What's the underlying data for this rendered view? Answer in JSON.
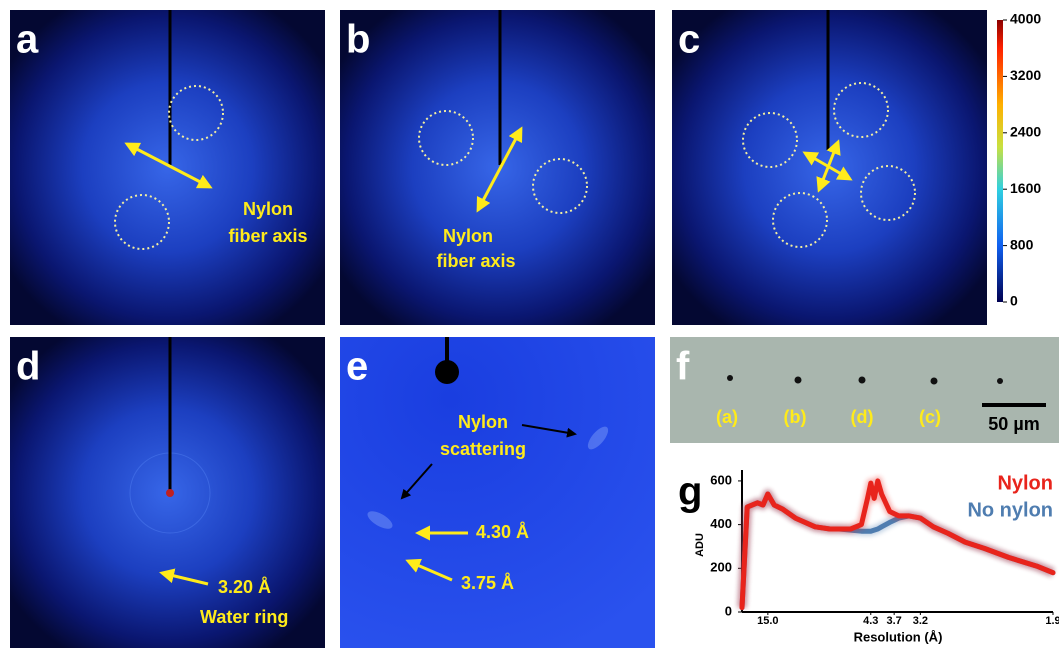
{
  "panels": [
    {
      "label": "a",
      "annotations": [
        "Nylon",
        "fiber axis"
      ]
    },
    {
      "label": "b",
      "annotations": [
        "Nylon",
        "fiber axis"
      ]
    },
    {
      "label": "c",
      "annotations": []
    },
    {
      "label": "d",
      "annotations": [
        "3.20 Å",
        "Water ring"
      ]
    },
    {
      "label": "e",
      "annotations": [
        "Nylon",
        "scattering",
        "4.30 Å",
        "3.75 Å"
      ]
    },
    {
      "label": "f",
      "annotations": [
        "(a)",
        "(b)",
        "(d)",
        "(c)",
        "50 µm"
      ]
    }
  ],
  "colorbar": {
    "lim": [
      0,
      4000
    ],
    "ticks": [
      4000,
      3200,
      2400,
      1600,
      800,
      0
    ]
  },
  "chart_data": {
    "type": "line",
    "panel_label": "g",
    "xlabel": "Resolution (Å)",
    "ylabel": "ADU",
    "xscale": "reciprocal",
    "x": [
      40,
      30,
      20,
      17,
      15,
      13,
      11,
      9,
      7,
      6,
      5.5,
      5,
      4.6,
      4.4,
      4.3,
      4.2,
      4.1,
      4.0,
      3.8,
      3.6,
      3.4,
      3.2,
      3.0,
      2.8,
      2.6,
      2.4,
      2.2,
      2.0,
      1.9
    ],
    "series": [
      {
        "name": "No nylon",
        "color": "#4f7db0",
        "values": [
          20,
          480,
          500,
          490,
          540,
          490,
          470,
          430,
          390,
          380,
          380,
          375,
          370,
          370,
          370,
          375,
          380,
          390,
          410,
          430,
          440,
          430,
          390,
          360,
          320,
          290,
          250,
          210,
          180
        ]
      },
      {
        "name": "Nylon",
        "color": "#e8241c",
        "values": [
          20,
          480,
          500,
          490,
          540,
          490,
          470,
          430,
          390,
          380,
          380,
          380,
          400,
          520,
          590,
          520,
          600,
          540,
          460,
          440,
          440,
          430,
          390,
          360,
          320,
          290,
          250,
          210,
          180
        ]
      }
    ],
    "xlim": [
      40,
      1.9
    ],
    "xticks": [
      {
        "value": 15,
        "label": "15.0"
      },
      4.3,
      3.7,
      3.2,
      1.9
    ],
    "ylim": [
      0,
      650
    ],
    "yticks": [
      0,
      200,
      400,
      600
    ]
  }
}
